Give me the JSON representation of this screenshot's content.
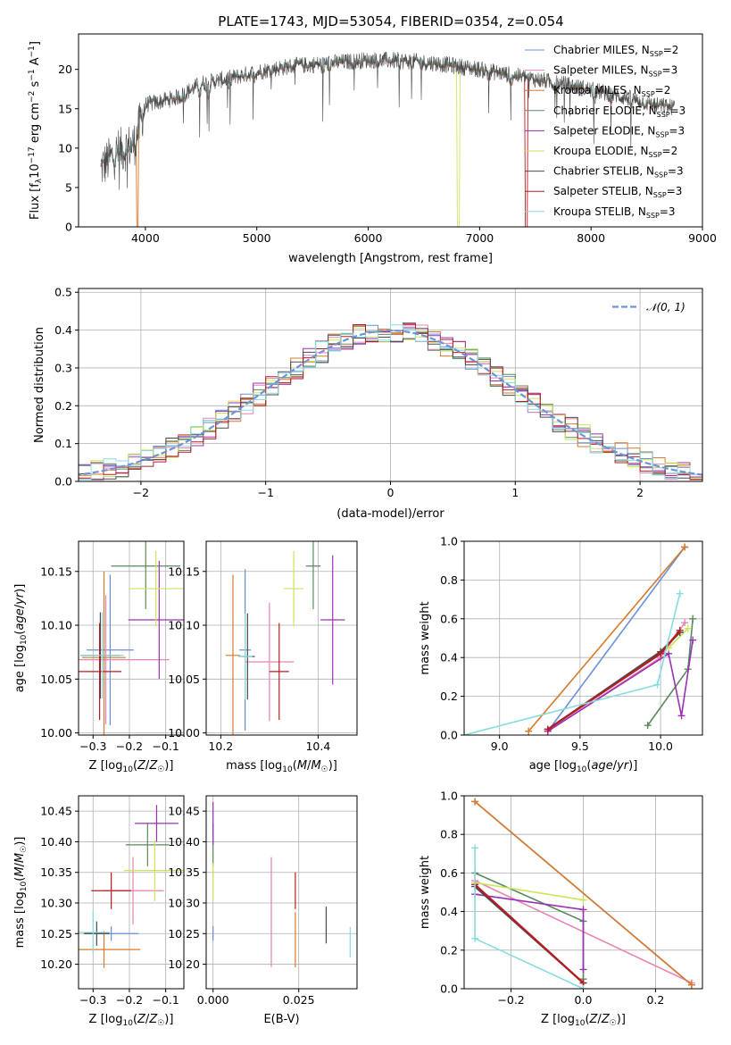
{
  "figure": {
    "title": "PLATE=1743, MJD=53054, FIBERID=0354, z=0.054"
  },
  "colors": {
    "Chabrier MILES": "#6b8fd8",
    "Salpeter MILES": "#e783b5",
    "Kroupa MILES": "#d9792a",
    "Chabrier ELODIE": "#5a8a5e",
    "Salpeter ELODIE": "#9b30b5",
    "Kroupa ELODIE": "#cbe55a",
    "Chabrier STELIB": "#4a4a4a",
    "Salpeter STELIB": "#b81c22",
    "Kroupa STELIB": "#86dce0"
  },
  "chart_data": [
    {
      "type": "line",
      "panel": "spectrum",
      "title": "PLATE=1743, MJD=53054, FIBERID=0354, z=0.054",
      "xlabel": "wavelength [Angstrom, rest frame]",
      "ylabel": "Flux [f_λ 10^-17 erg cm^-2 s^-1 A^-1]",
      "xlim": [
        3400,
        9000
      ],
      "ylim": [
        0,
        24.5
      ],
      "xticks": [
        4000,
        5000,
        6000,
        7000,
        8000,
        9000
      ],
      "yticks": [
        0,
        5,
        10,
        15,
        20
      ],
      "legend_loc": "right",
      "legend": [
        "Chabrier MILES, N_SSP=2",
        "Salpeter MILES, N_SSP=3",
        "Kroupa MILES, N_SSP=2",
        "Chabrier ELODIE, N_SSP=3",
        "Salpeter ELODIE, N_SSP=3",
        "Kroupa ELODIE, N_SSP=2",
        "Chabrier STELIB, N_SSP=3",
        "Salpeter STELIB, N_SSP=3",
        "Kroupa STELIB, N_SSP=3"
      ],
      "legend_series": [
        "Chabrier MILES",
        "Salpeter MILES",
        "Kroupa MILES",
        "Chabrier ELODIE",
        "Salpeter ELODIE",
        "Kroupa ELODIE",
        "Chabrier STELIB",
        "Salpeter STELIB",
        "Kroupa STELIB"
      ],
      "data_range_x": [
        3600,
        8750
      ],
      "trend_x": [
        3600,
        3750,
        3900,
        4000,
        4100,
        4300,
        4500,
        4800,
        5000,
        5300,
        5600,
        6000,
        6300,
        6600,
        7000,
        7400,
        7800,
        8200,
        8600,
        8750
      ],
      "trend_y": [
        7.5,
        9.5,
        10.5,
        15.5,
        15.8,
        16.5,
        18.2,
        19.0,
        19.7,
        20.4,
        20.7,
        21.2,
        21.1,
        20.8,
        20.0,
        19.0,
        18.0,
        16.8,
        15.4,
        15.2
      ]
    },
    {
      "type": "line",
      "panel": "residual-histogram",
      "xlabel": "(data-model)/error",
      "ylabel": "Normed distribution",
      "xlim": [
        -2.5,
        2.5
      ],
      "ylim": [
        0,
        0.51
      ],
      "xticks": [
        -2,
        -1,
        0,
        1,
        2
      ],
      "yticks": [
        0.0,
        0.1,
        0.2,
        0.3,
        0.4,
        0.5
      ],
      "grid": true,
      "reference": {
        "name": "N(0,1)",
        "label": "𝒩(0, 1)",
        "color": "#6d93d9",
        "mean": 0,
        "sigma": 1
      },
      "bin_width": 0.1,
      "series_note": "nine step histograms, one per model"
    },
    {
      "type": "scatter",
      "panel": "age-vs-Z",
      "xlabel": "Z [log10(Z/Z☉)]",
      "ylabel": "age [log10(age/yr)]",
      "xlim": [
        -0.34,
        -0.05
      ],
      "ylim": [
        9.998,
        10.178
      ],
      "xticks": [
        -0.3,
        -0.2,
        -0.1
      ],
      "yticks": [
        10.0,
        10.05,
        10.1,
        10.15
      ],
      "grid": true,
      "points": [
        {
          "series": "Chabrier MILES",
          "x": -0.253,
          "xerr": 0.065,
          "y": 10.077,
          "yerr": 0.07
        },
        {
          "series": "Salpeter MILES",
          "x": -0.265,
          "xerr": 0.175,
          "y": 10.068,
          "yerr": 0.06
        },
        {
          "series": "Kroupa MILES",
          "x": -0.27,
          "xerr": 0.06,
          "y": 10.07,
          "yerr": 0.08
        },
        {
          "series": "Chabrier ELODIE",
          "x": -0.155,
          "xerr": 0.095,
          "y": 10.155,
          "yerr": 0.04
        },
        {
          "series": "Salpeter ELODIE",
          "x": -0.118,
          "xerr": 0.085,
          "y": 10.105,
          "yerr": 0.055
        },
        {
          "series": "Kroupa ELODIE",
          "x": -0.127,
          "xerr": 0.075,
          "y": 10.134,
          "yerr": 0.035
        },
        {
          "series": "Chabrier STELIB",
          "x": -0.28,
          "xerr": 0.055,
          "y": 10.072,
          "yerr": 0.04
        },
        {
          "series": "Salpeter STELIB",
          "x": -0.282,
          "xerr": 0.06,
          "y": 10.057,
          "yerr": 0.045
        },
        {
          "series": "Kroupa STELIB",
          "x": -0.275,
          "xerr": 0.06,
          "y": 10.072,
          "yerr": 0.04
        }
      ]
    },
    {
      "type": "scatter",
      "panel": "age-vs-mass",
      "xlabel": "mass [log10(M/M☉)]",
      "ylabel": "",
      "xlim": [
        10.17,
        10.48
      ],
      "ylim": [
        9.998,
        10.178
      ],
      "xticks": [
        10.2,
        10.4
      ],
      "yticks": [
        10.0,
        10.05,
        10.1,
        10.15
      ],
      "grid": true,
      "points": [
        {
          "series": "Chabrier MILES",
          "x": 10.25,
          "xerr": 0.012,
          "y": 10.077,
          "yerr": 0.075
        },
        {
          "series": "Salpeter MILES",
          "x": 10.3,
          "xerr": 0.05,
          "y": 10.066,
          "yerr": 0.055
        },
        {
          "series": "Kroupa MILES",
          "x": 10.225,
          "xerr": 0.015,
          "y": 10.072,
          "yerr": 0.075
        },
        {
          "series": "Chabrier ELODIE",
          "x": 10.39,
          "xerr": 0.015,
          "y": 10.155,
          "yerr": 0.04
        },
        {
          "series": "Salpeter ELODIE",
          "x": 10.43,
          "xerr": 0.025,
          "y": 10.105,
          "yerr": 0.06
        },
        {
          "series": "Kroupa ELODIE",
          "x": 10.35,
          "xerr": 0.02,
          "y": 10.134,
          "yerr": 0.035
        },
        {
          "series": "Chabrier STELIB",
          "x": 10.255,
          "xerr": 0.015,
          "y": 10.071,
          "yerr": 0.04
        },
        {
          "series": "Salpeter STELIB",
          "x": 10.32,
          "xerr": 0.02,
          "y": 10.057,
          "yerr": 0.045
        },
        {
          "series": "Kroupa STELIB",
          "x": 10.25,
          "xerr": 0.015,
          "y": 10.071,
          "yerr": 0.04
        }
      ]
    },
    {
      "type": "line",
      "panel": "mass-weight-vs-age",
      "xlabel": "age [log10(age/yr)]",
      "ylabel": "mass weight",
      "xlim": [
        8.78,
        10.26
      ],
      "ylim": [
        0,
        1.0
      ],
      "xticks": [
        9.0,
        9.5,
        10.0
      ],
      "yticks": [
        0.0,
        0.2,
        0.4,
        0.6,
        0.8,
        1.0
      ],
      "grid": true,
      "series": [
        {
          "name": "Chabrier MILES",
          "x": [
            9.3,
            10.15
          ],
          "y": [
            0.02,
            0.97
          ]
        },
        {
          "name": "Salpeter MILES",
          "x": [
            9.3,
            10.0,
            10.15
          ],
          "y": [
            0.02,
            0.4,
            0.58
          ]
        },
        {
          "name": "Kroupa MILES",
          "x": [
            9.18,
            10.15
          ],
          "y": [
            0.02,
            0.97
          ]
        },
        {
          "name": "Chabrier ELODIE",
          "x": [
            9.92,
            10.17,
            10.2
          ],
          "y": [
            0.05,
            0.34,
            0.6
          ]
        },
        {
          "name": "Salpeter ELODIE",
          "x": [
            9.3,
            10.05,
            10.13,
            10.2
          ],
          "y": [
            0.02,
            0.42,
            0.1,
            0.49
          ]
        },
        {
          "name": "Kroupa ELODIE",
          "x": [
            10.05,
            10.17
          ],
          "y": [
            0.45,
            0.55
          ]
        },
        {
          "name": "Chabrier STELIB",
          "x": [
            9.3,
            10.0,
            10.12
          ],
          "y": [
            0.03,
            0.43,
            0.53
          ]
        },
        {
          "name": "Salpeter STELIB",
          "x": [
            9.3,
            10.0,
            10.12
          ],
          "y": [
            0.03,
            0.42,
            0.54
          ]
        },
        {
          "name": "Kroupa STELIB",
          "x": [
            8.78,
            9.98,
            10.12
          ],
          "y": [
            0.0,
            0.26,
            0.73
          ]
        }
      ]
    },
    {
      "type": "scatter",
      "panel": "mass-vs-Z",
      "xlabel": "Z [log10(Z/Z☉)]",
      "ylabel": "mass [log10(M/M☉)]",
      "xlim": [
        -0.34,
        -0.05
      ],
      "ylim": [
        10.16,
        10.475
      ],
      "xticks": [
        -0.3,
        -0.2,
        -0.1
      ],
      "yticks": [
        10.2,
        10.25,
        10.3,
        10.35,
        10.4,
        10.45
      ],
      "grid": true,
      "points": [
        {
          "series": "Chabrier MILES",
          "x": -0.25,
          "xerr": 0.075,
          "y": 10.25,
          "yerr": 0.012
        },
        {
          "series": "Salpeter MILES",
          "x": -0.19,
          "xerr": 0.085,
          "y": 10.32,
          "yerr": 0.055
        },
        {
          "series": "Kroupa MILES",
          "x": -0.27,
          "xerr": 0.1,
          "y": 10.224,
          "yerr": 0.03
        },
        {
          "series": "Chabrier ELODIE",
          "x": -0.15,
          "xerr": 0.06,
          "y": 10.395,
          "yerr": 0.035
        },
        {
          "series": "Salpeter ELODIE",
          "x": -0.125,
          "xerr": 0.06,
          "y": 10.43,
          "yerr": 0.03
        },
        {
          "series": "Kroupa ELODIE",
          "x": -0.13,
          "xerr": 0.085,
          "y": 10.353,
          "yerr": 0.05
        },
        {
          "series": "Chabrier STELIB",
          "x": -0.29,
          "xerr": 0.035,
          "y": 10.25,
          "yerr": 0.02
        },
        {
          "series": "Salpeter STELIB",
          "x": -0.25,
          "xerr": 0.055,
          "y": 10.32,
          "yerr": 0.03
        },
        {
          "series": "Kroupa STELIB",
          "x": -0.3,
          "xerr": 0.045,
          "y": 10.252,
          "yerr": 0.035
        }
      ]
    },
    {
      "type": "scatter",
      "panel": "mass-vs-EBV",
      "xlabel": "E(B-V)",
      "ylabel": "",
      "xlim": [
        -0.002,
        0.042
      ],
      "ylim": [
        10.16,
        10.475
      ],
      "xticks": [
        0.0,
        0.025
      ],
      "yticks": [
        10.2,
        10.25,
        10.3,
        10.35,
        10.4,
        10.45
      ],
      "grid": true,
      "points": [
        {
          "series": "Chabrier MILES",
          "x": 0.0,
          "y": 10.25,
          "yerr": 0.012
        },
        {
          "series": "Salpeter MILES",
          "x": 0.017,
          "y": 10.285,
          "yerr": 0.09
        },
        {
          "series": "Kroupa MILES",
          "x": 0.024,
          "y": 10.24,
          "yerr": 0.045
        },
        {
          "series": "Chabrier ELODIE",
          "x": 0.0,
          "y": 10.395,
          "yerr": 0.035
        },
        {
          "series": "Salpeter ELODIE",
          "x": 0.0,
          "y": 10.43,
          "yerr": 0.035
        },
        {
          "series": "Kroupa ELODIE",
          "x": 0.0,
          "y": 10.335,
          "yerr": 0.03
        },
        {
          "series": "Chabrier STELIB",
          "x": 0.033,
          "y": 10.264,
          "yerr": 0.03
        },
        {
          "series": "Salpeter STELIB",
          "x": 0.024,
          "y": 10.32,
          "yerr": 0.03
        },
        {
          "series": "Kroupa STELIB",
          "x": 0.04,
          "y": 10.236,
          "yerr": 0.025
        }
      ]
    },
    {
      "type": "line",
      "panel": "mass-weight-vs-Z",
      "xlabel": "Z [log10(Z/Z☉)]",
      "ylabel": "mass weight",
      "xlim": [
        -0.33,
        0.33
      ],
      "ylim": [
        0,
        1.0
      ],
      "xticks": [
        -0.2,
        0.0,
        0.2
      ],
      "yticks": [
        0.0,
        0.2,
        0.4,
        0.6,
        0.8,
        1.0
      ],
      "grid": true,
      "series": [
        {
          "name": "Chabrier MILES",
          "x": [
            -0.3,
            0.3
          ],
          "y": [
            0.97,
            0.02
          ]
        },
        {
          "name": "Salpeter MILES",
          "x": [
            -0.3,
            0.3
          ],
          "y": [
            0.56,
            0.03
          ]
        },
        {
          "name": "Kroupa MILES",
          "x": [
            -0.3,
            0.3
          ],
          "y": [
            0.97,
            0.02
          ]
        },
        {
          "name": "Chabrier ELODIE",
          "x": [
            -0.3,
            0.0,
            0.0
          ],
          "y": [
            0.6,
            0.35,
            0.05
          ]
        },
        {
          "name": "Salpeter ELODIE",
          "x": [
            -0.3,
            0.0,
            0.0
          ],
          "y": [
            0.49,
            0.41,
            0.1
          ]
        },
        {
          "name": "Kroupa ELODIE",
          "x": [
            -0.3,
            0.0
          ],
          "y": [
            0.55,
            0.46
          ]
        },
        {
          "name": "Chabrier STELIB",
          "x": [
            -0.3,
            0.0
          ],
          "y": [
            0.53,
            0.03
          ]
        },
        {
          "name": "Salpeter STELIB",
          "x": [
            -0.3,
            0.0
          ],
          "y": [
            0.54,
            0.03
          ]
        },
        {
          "name": "Kroupa STELIB",
          "x": [
            -0.3,
            -0.3,
            0.0
          ],
          "y": [
            0.73,
            0.26,
            0.0
          ]
        }
      ]
    }
  ]
}
